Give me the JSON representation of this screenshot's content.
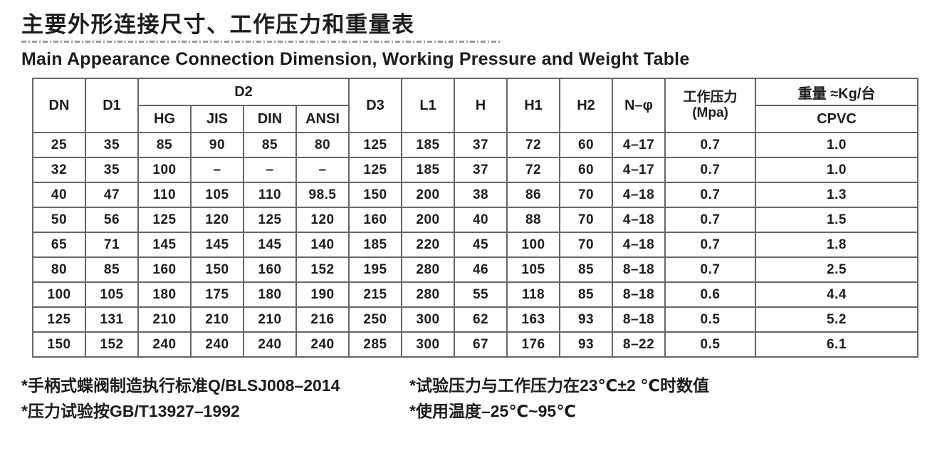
{
  "page": {
    "title_zh": "主要外形连接尺寸、工作压力和重量表",
    "subtitle_en": "Main Appearance Connection Dimension, Working Pressure and Weight Table"
  },
  "table": {
    "headers": {
      "dn": "DN",
      "d1": "D1",
      "d2_group": "D2",
      "d2_sub": [
        "HG",
        "JIS",
        "DIN",
        "ANSI"
      ],
      "d3": "D3",
      "l1": "L1",
      "h": "H",
      "h1": "H1",
      "h2": "H2",
      "n_phi": "N–φ",
      "pressure_line1": "工作压力",
      "pressure_line2": "(Mpa)",
      "weight_group": "重量 ≈Kg/台",
      "weight_sub": "CPVC"
    },
    "rows": [
      [
        "25",
        "35",
        "85",
        "90",
        "85",
        "80",
        "125",
        "185",
        "37",
        "72",
        "60",
        "4–17",
        "0.7",
        "1.0"
      ],
      [
        "32",
        "35",
        "100",
        "–",
        "–",
        "–",
        "125",
        "185",
        "37",
        "72",
        "60",
        "4–17",
        "0.7",
        "1.0"
      ],
      [
        "40",
        "47",
        "110",
        "105",
        "110",
        "98.5",
        "150",
        "200",
        "38",
        "86",
        "70",
        "4–18",
        "0.7",
        "1.3"
      ],
      [
        "50",
        "56",
        "125",
        "120",
        "125",
        "120",
        "160",
        "200",
        "40",
        "88",
        "70",
        "4–18",
        "0.7",
        "1.5"
      ],
      [
        "65",
        "71",
        "145",
        "145",
        "145",
        "140",
        "185",
        "220",
        "45",
        "100",
        "70",
        "4–18",
        "0.7",
        "1.8"
      ],
      [
        "80",
        "85",
        "160",
        "150",
        "160",
        "152",
        "195",
        "280",
        "46",
        "105",
        "85",
        "8–18",
        "0.7",
        "2.5"
      ],
      [
        "100",
        "105",
        "180",
        "175",
        "180",
        "190",
        "215",
        "280",
        "55",
        "118",
        "85",
        "8–18",
        "0.6",
        "4.4"
      ],
      [
        "125",
        "131",
        "210",
        "210",
        "210",
        "216",
        "250",
        "300",
        "62",
        "163",
        "93",
        "8–18",
        "0.5",
        "5.2"
      ],
      [
        "150",
        "152",
        "240",
        "240",
        "240",
        "240",
        "285",
        "300",
        "67",
        "176",
        "93",
        "8–22",
        "0.5",
        "6.1"
      ]
    ]
  },
  "notes": {
    "left": [
      "*手柄式蝶阀制造执行标准Q/BLSJ008–2014",
      "*压力试验按GB/T13927–1992"
    ],
    "right": [
      "*试验压力与工作压力在23℃±2 ℃时数值",
      "*使用温度–25℃~95℃"
    ]
  }
}
